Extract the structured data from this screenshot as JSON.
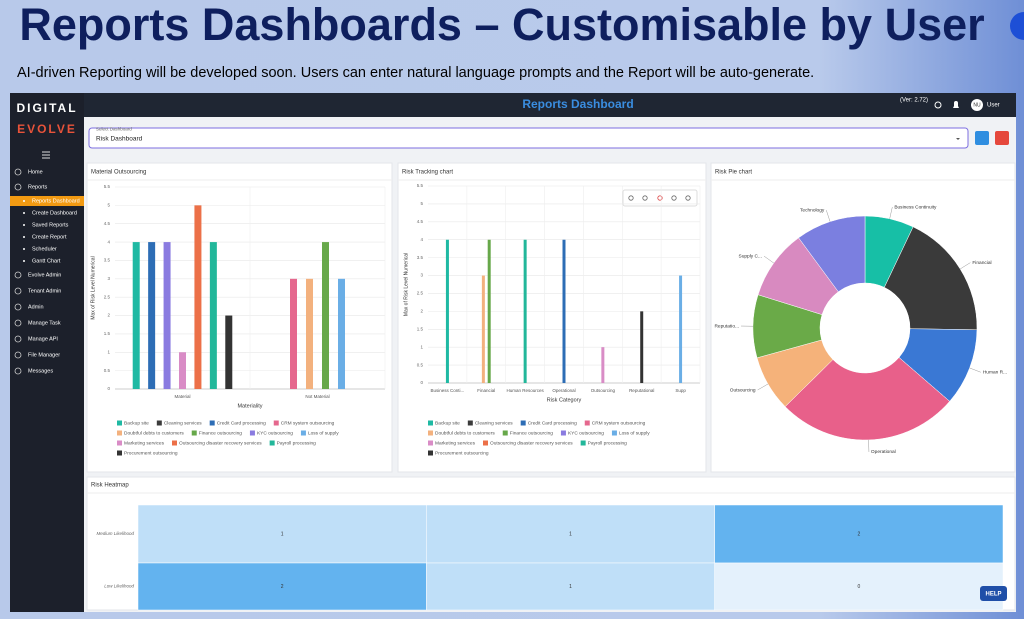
{
  "slide": {
    "title": "Reports Dashboards – Customisable by User",
    "subtitle": "AI-driven Reporting will be developed soon.  Users can enter natural language prompts and the Report will be auto-generate."
  },
  "app": {
    "logo": [
      "DIGITAL",
      "EVOLVE"
    ],
    "header_title": "Reports Dashboard",
    "version": "(Ver: 2.72)",
    "avatar": "NU",
    "user": "User",
    "menu_top": [
      "Home",
      "Reports"
    ],
    "reports_submenu": [
      "Reports Dashboard",
      "Create Dashboard",
      "Saved Reports",
      "Create Report",
      "Scheduler",
      "Gantt Chart"
    ],
    "menu_bottom": [
      "Evolve Admin",
      "Tenant Admin",
      "Admin",
      "Manage Task",
      "Manage API",
      "File Manager",
      "Messages"
    ],
    "select_label": "Select Dashboard",
    "select_value": "Risk Dashboard",
    "help": "HELP"
  },
  "charts": [
    {
      "type": "bar",
      "title": "Material Outsourcing",
      "x_label": "Materiality",
      "y_label": "Max of Risk Level Numerical",
      "categories": [
        "Material",
        "Not Material"
      ],
      "ylim": [
        0,
        5.5
      ],
      "yticks": [
        0,
        0.5,
        1,
        1.5,
        2,
        2.5,
        3,
        3.5,
        4,
        4.5,
        5,
        5.5
      ],
      "grid": true,
      "series": [
        {
          "name": "Backup site",
          "color": "#1fb9a3",
          "values": [
            4,
            null
          ]
        },
        {
          "name": "Cleaning services",
          "color": "#3b3b3b",
          "values": [
            null,
            null
          ]
        },
        {
          "name": "Credit Card processing",
          "color": "#2d6db5",
          "values": [
            4,
            null
          ]
        },
        {
          "name": "CRM system outsourcing",
          "color": "#e5688e",
          "values": [
            null,
            3
          ]
        },
        {
          "name": "Doubtful debts to customers",
          "color": "#f3b17e",
          "values": [
            null,
            3
          ]
        },
        {
          "name": "Finance outsourcing",
          "color": "#67a84a",
          "values": [
            null,
            4
          ]
        },
        {
          "name": "KYC outsourcing",
          "color": "#8a7be0",
          "values": [
            4,
            null
          ]
        },
        {
          "name": "Loss of supply",
          "color": "#6aaee6",
          "values": [
            null,
            3
          ]
        },
        {
          "name": "Marketing services",
          "color": "#d98cc6",
          "values": [
            1,
            null
          ]
        },
        {
          "name": "Outsourcing disaster recovery services",
          "color": "#ec7048",
          "values": [
            5,
            null
          ]
        },
        {
          "name": "Payroll processing",
          "color": "#22b79a",
          "values": [
            4,
            null
          ]
        },
        {
          "name": "Procurement outsourcing",
          "color": "#333333",
          "values": [
            2,
            null
          ]
        }
      ]
    },
    {
      "type": "bar",
      "title": "Risk Tracking chart",
      "x_label": "Risk Category",
      "y_label": "Max of Risk Level Numerical",
      "categories": [
        "Business Conti...",
        "Financial",
        "Human Resources",
        "Operational",
        "Outsourcing",
        "Reputational",
        "Supp"
      ],
      "ylim": [
        0,
        5.5
      ],
      "yticks": [
        0,
        0.5,
        1,
        1.5,
        2,
        2.5,
        3,
        3.5,
        4,
        4.5,
        5,
        5.5
      ],
      "grid": true,
      "series": [
        {
          "name": "Backup site",
          "color": "#1fb9a3",
          "values": [
            4,
            null,
            null,
            null,
            null,
            null,
            null
          ]
        },
        {
          "name": "Cleaning services",
          "color": "#3b3b3b",
          "values": [
            null,
            null,
            null,
            null,
            null,
            null,
            null
          ]
        },
        {
          "name": "Credit Card processing",
          "color": "#2d6db5",
          "values": [
            null,
            null,
            null,
            4,
            null,
            null,
            null
          ]
        },
        {
          "name": "CRM system outsourcing",
          "color": "#e5688e",
          "values": [
            null,
            null,
            null,
            null,
            null,
            null,
            null
          ]
        },
        {
          "name": "Doubtful debts to customers",
          "color": "#f3b17e",
          "values": [
            null,
            3,
            null,
            null,
            null,
            null,
            null
          ]
        },
        {
          "name": "Finance outsourcing",
          "color": "#67a84a",
          "values": [
            null,
            4,
            null,
            null,
            null,
            null,
            null
          ]
        },
        {
          "name": "KYC outsourcing",
          "color": "#8a7be0",
          "values": [
            null,
            null,
            null,
            null,
            null,
            null,
            null
          ]
        },
        {
          "name": "Loss of supply",
          "color": "#6aaee6",
          "values": [
            null,
            null,
            null,
            null,
            null,
            null,
            3
          ]
        },
        {
          "name": "Marketing services",
          "color": "#d98cc6",
          "values": [
            null,
            null,
            null,
            null,
            1,
            null,
            null
          ]
        },
        {
          "name": "Outsourcing disaster recovery services",
          "color": "#ec7048",
          "values": [
            null,
            null,
            null,
            null,
            null,
            null,
            null
          ]
        },
        {
          "name": "Payroll processing",
          "color": "#22b79a",
          "values": [
            null,
            null,
            4,
            null,
            null,
            null,
            null
          ]
        },
        {
          "name": "Procurement outsourcing",
          "color": "#333333",
          "values": [
            null,
            null,
            null,
            null,
            null,
            2,
            null
          ]
        }
      ]
    },
    {
      "type": "pie",
      "title": "Risk Pie chart",
      "categories": [
        "Business Continuity",
        "Financial",
        "Human R...",
        "Operational",
        "Outsourcing",
        "Reputatio...",
        "Supply C...",
        "Technology"
      ],
      "values": [
        7,
        18,
        11,
        26,
        8,
        9,
        10,
        10
      ],
      "colors": [
        "#17bfa6",
        "#3a3a3a",
        "#3a78d4",
        "#e8608a",
        "#f5b27a",
        "#6aaa48",
        "#d88ac0",
        "#7b7fe0"
      ]
    }
  ],
  "heatmap": {
    "title": "Risk Heatmap",
    "rows": [
      "Medium Likelihood",
      "Low Likelihood"
    ],
    "values": [
      [
        1,
        1,
        2
      ],
      [
        2,
        1,
        0
      ]
    ],
    "colors": [
      "#e4f1fc",
      "#bfdff8",
      "#63b3ef"
    ]
  }
}
